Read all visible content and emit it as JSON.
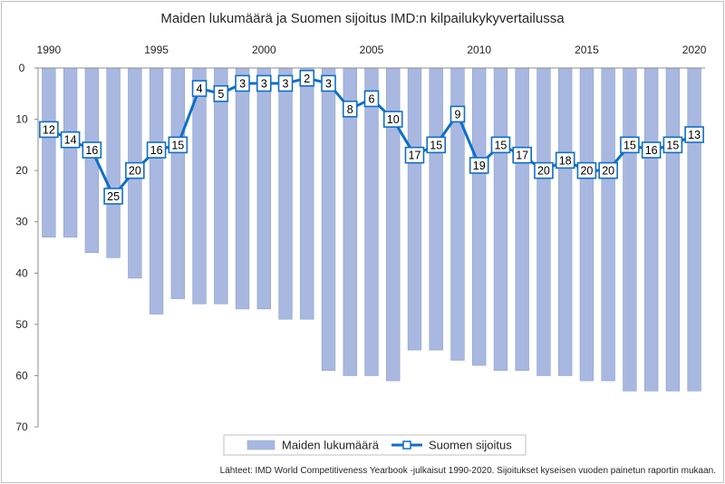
{
  "chart_data": {
    "type": "bar+line",
    "title": "Maiden lukumäärä ja Suomen sijoitus IMD:n kilpailukykyvertailussa",
    "x": [
      1990,
      1991,
      1992,
      1993,
      1994,
      1995,
      1996,
      1997,
      1998,
      1999,
      2000,
      2001,
      2002,
      2003,
      2004,
      2005,
      2006,
      2007,
      2008,
      2009,
      2010,
      2011,
      2012,
      2013,
      2014,
      2015,
      2016,
      2017,
      2018,
      2019,
      2020
    ],
    "x_tick_labels": [
      "1990",
      "1995",
      "2000",
      "2005",
      "2010",
      "2015",
      "2020"
    ],
    "y_tick_labels": [
      "0",
      "10",
      "20",
      "30",
      "40",
      "50",
      "60",
      "70"
    ],
    "ylim": [
      0,
      70
    ],
    "y_reversed": true,
    "x_axis_position": "top",
    "series": [
      {
        "name": "Maiden lukumäärä",
        "type": "bar",
        "color": "#a9b8e0",
        "values": [
          33,
          33,
          36,
          37,
          41,
          48,
          45,
          46,
          46,
          47,
          47,
          49,
          49,
          59,
          60,
          60,
          61,
          55,
          55,
          57,
          58,
          59,
          59,
          60,
          60,
          61,
          61,
          63,
          63,
          63,
          63
        ]
      },
      {
        "name": "Suomen sijoitus",
        "type": "line",
        "color": "#0f6fc6",
        "values": [
          12,
          14,
          16,
          25,
          20,
          16,
          15,
          4,
          5,
          3,
          3,
          3,
          2,
          3,
          8,
          6,
          10,
          17,
          15,
          9,
          19,
          15,
          17,
          20,
          18,
          20,
          20,
          15,
          16,
          15,
          13
        ]
      }
    ],
    "legend_position": "bottom",
    "grid": false,
    "source_note": "Lähteet: IMD World Competitiveness Yearbook -julkaisut 1990-2020. Sijoitukset kyseisen vuoden painetun raportin mukaan."
  }
}
